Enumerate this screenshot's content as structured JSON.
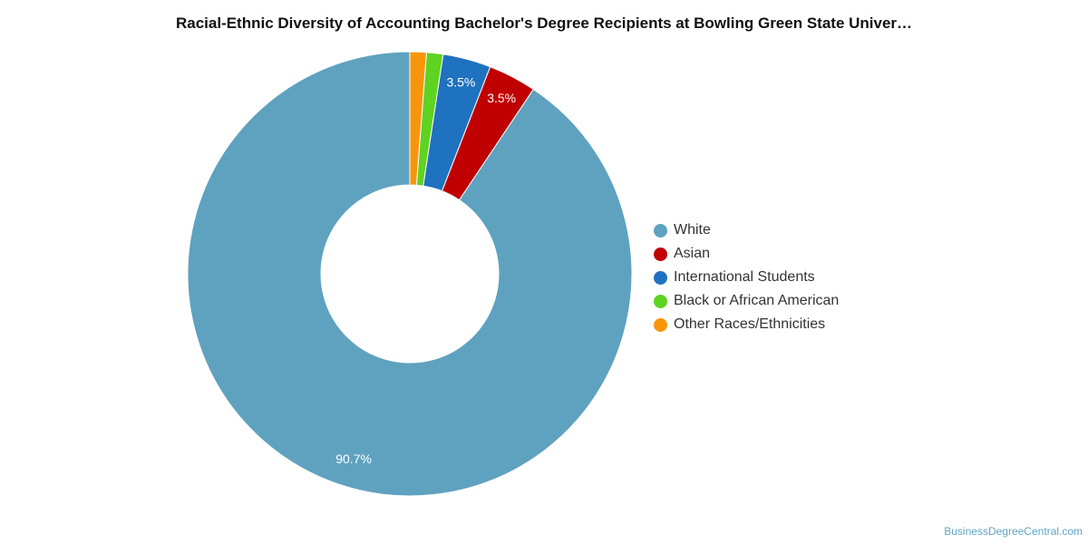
{
  "title": "Racial-Ethnic Diversity of Accounting Bachelor's Degree Recipients at Bowling Green State Univer…",
  "source": "BusinessDegreeCentral.com",
  "chart_data": {
    "type": "pie",
    "donut": true,
    "legend_position": "right",
    "categories": [
      "White",
      "Asian",
      "International Students",
      "Black or African American",
      "Other Races/Ethnicities"
    ],
    "values": [
      90.7,
      3.5,
      3.5,
      1.2,
      1.2
    ],
    "data_labels": [
      "90.7%",
      "3.5%",
      "3.5%",
      "",
      ""
    ],
    "colors": [
      "#5fa2bf",
      "#c00000",
      "#1f72bf",
      "#5ed321",
      "#f7960b"
    ]
  }
}
